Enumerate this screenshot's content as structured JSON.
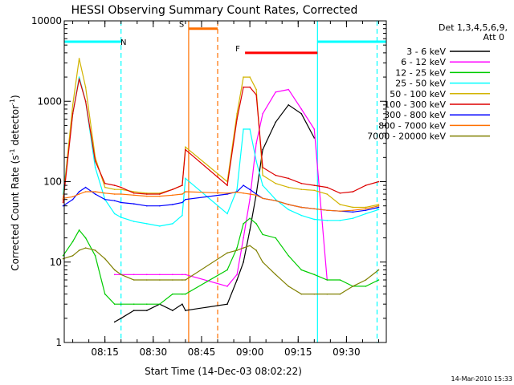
{
  "chart_data": {
    "type": "line",
    "title": "HESSI Observing Summary Count Rates, Corrected",
    "xlabel": "Start Time (14-Dec-03 08:02:22)",
    "ylabel_main": "Corrected Count Rate (s",
    "ylabel_sup1": "-1",
    "ylabel_mid": " detector",
    "ylabel_sup2": "-1",
    "ylabel_end": ")",
    "y_scale": "log",
    "ylim": [
      1,
      10000
    ],
    "xlim": [
      "08:02:22",
      "09:42:22"
    ],
    "x_ticks": [
      "08:15",
      "08:30",
      "08:45",
      "09:00",
      "09:15",
      "09:30"
    ],
    "y_ticks": [
      "1",
      "10",
      "100",
      "1000",
      "10000"
    ],
    "legend_title1": "Det 1,3,4,5,6,9,",
    "legend_title2": "Att 0",
    "legend_placement": "right",
    "timestamp": "14-Mar-2010 15:33",
    "state_bars": [
      {
        "label": "N",
        "color": "#00ffff",
        "intervals": [
          [
            "08:02:22",
            "08:20:00"
          ],
          [
            "09:21:00",
            "09:42:22"
          ]
        ],
        "y": 5500
      },
      {
        "label": "S",
        "color": "#ff7000",
        "intervals": [
          [
            "08:41:00",
            "08:50:00"
          ]
        ],
        "y": 8000
      },
      {
        "label": "F",
        "color": "#ff0000",
        "intervals": [
          [
            "08:58:30",
            "09:21:00"
          ]
        ],
        "y": 4000
      }
    ],
    "markers": [
      {
        "time": "08:20:00",
        "color": "#00ffff",
        "style": "dashed"
      },
      {
        "time": "08:41:00",
        "color": "#ff7000",
        "style": "solid"
      },
      {
        "time": "08:50:00",
        "color": "#ff7000",
        "style": "dashed"
      },
      {
        "time": "09:21:00",
        "color": "#00ffff",
        "style": "solid"
      },
      {
        "time": "09:39:30",
        "color": "#00ffff",
        "style": "dashed"
      }
    ],
    "x": [
      "08:02",
      "08:05",
      "08:07",
      "08:09",
      "08:12",
      "08:15",
      "08:18",
      "08:20",
      "08:24",
      "08:28",
      "08:32",
      "08:36",
      "08:39",
      "08:40",
      "08:53",
      "08:56",
      "08:58",
      "09:00",
      "09:02",
      "09:04",
      "09:08",
      "09:12",
      "09:16",
      "09:20",
      "09:24",
      "09:28",
      "09:32",
      "09:36",
      "09:40"
    ],
    "series": [
      {
        "name": "3 - 6 keV",
        "color": "#000000",
        "values": [
          null,
          null,
          null,
          null,
          null,
          null,
          1.8,
          2,
          2.5,
          2.5,
          3,
          2.5,
          3,
          2.5,
          3,
          6,
          10,
          25,
          70,
          250,
          550,
          900,
          700,
          350,
          null,
          null,
          null,
          null,
          null
        ]
      },
      {
        "name": "6 - 12 keV",
        "color": "#ff00ff",
        "values": [
          null,
          null,
          null,
          null,
          null,
          null,
          7,
          7,
          7,
          7,
          7,
          7,
          7,
          7,
          5,
          7,
          20,
          60,
          300,
          700,
          1300,
          1400,
          800,
          450,
          6,
          null,
          null,
          null,
          null
        ]
      },
      {
        "name": "12 - 25 keV",
        "color": "#00cc00",
        "values": [
          12,
          18,
          25,
          20,
          12,
          4,
          3,
          3,
          3,
          3,
          3,
          4,
          4,
          4,
          8,
          15,
          30,
          35,
          30,
          22,
          20,
          12,
          8,
          7,
          6,
          6,
          5,
          5,
          6
        ]
      },
      {
        "name": "25 - 50 keV",
        "color": "#00ffff",
        "values": [
          70,
          700,
          2000,
          1000,
          150,
          60,
          40,
          36,
          32,
          30,
          28,
          30,
          38,
          110,
          40,
          80,
          450,
          450,
          180,
          90,
          60,
          45,
          38,
          34,
          33,
          33,
          35,
          40,
          45
        ]
      },
      {
        "name": "50 - 100 keV",
        "color": "#d2b400",
        "values": [
          60,
          900,
          3400,
          1500,
          200,
          85,
          80,
          80,
          75,
          72,
          72,
          80,
          90,
          270,
          100,
          700,
          2000,
          2000,
          1400,
          120,
          95,
          85,
          80,
          78,
          70,
          52,
          48,
          48,
          52
        ]
      },
      {
        "name": "100 - 300 keV",
        "color": "#dd0000",
        "values": [
          55,
          700,
          1900,
          1000,
          180,
          95,
          90,
          85,
          72,
          70,
          70,
          80,
          90,
          250,
          90,
          600,
          1500,
          1500,
          1200,
          150,
          120,
          110,
          95,
          90,
          85,
          72,
          75,
          90,
          100
        ]
      },
      {
        "name": "300 - 800 keV",
        "color": "#0000ff",
        "values": [
          50,
          60,
          75,
          85,
          70,
          60,
          58,
          55,
          53,
          50,
          50,
          52,
          55,
          60,
          70,
          75,
          90,
          80,
          70,
          62,
          58,
          52,
          48,
          46,
          44,
          43,
          42,
          44,
          48
        ]
      },
      {
        "name": "800 - 7000 keV",
        "color": "#ff7000",
        "values": [
          62,
          65,
          70,
          75,
          75,
          72,
          70,
          70,
          68,
          66,
          66,
          68,
          70,
          75,
          72,
          74,
          72,
          70,
          68,
          62,
          58,
          52,
          48,
          46,
          44,
          43,
          44,
          46,
          50
        ]
      },
      {
        "name": "7000 - 20000 keV",
        "color": "#808000",
        "values": [
          11,
          12,
          14,
          15,
          14,
          11,
          8,
          7,
          6,
          6,
          6,
          6,
          6,
          6,
          13,
          14,
          15,
          16,
          14,
          10,
          7,
          5,
          4,
          4,
          4,
          4,
          5,
          6,
          8
        ]
      }
    ]
  }
}
